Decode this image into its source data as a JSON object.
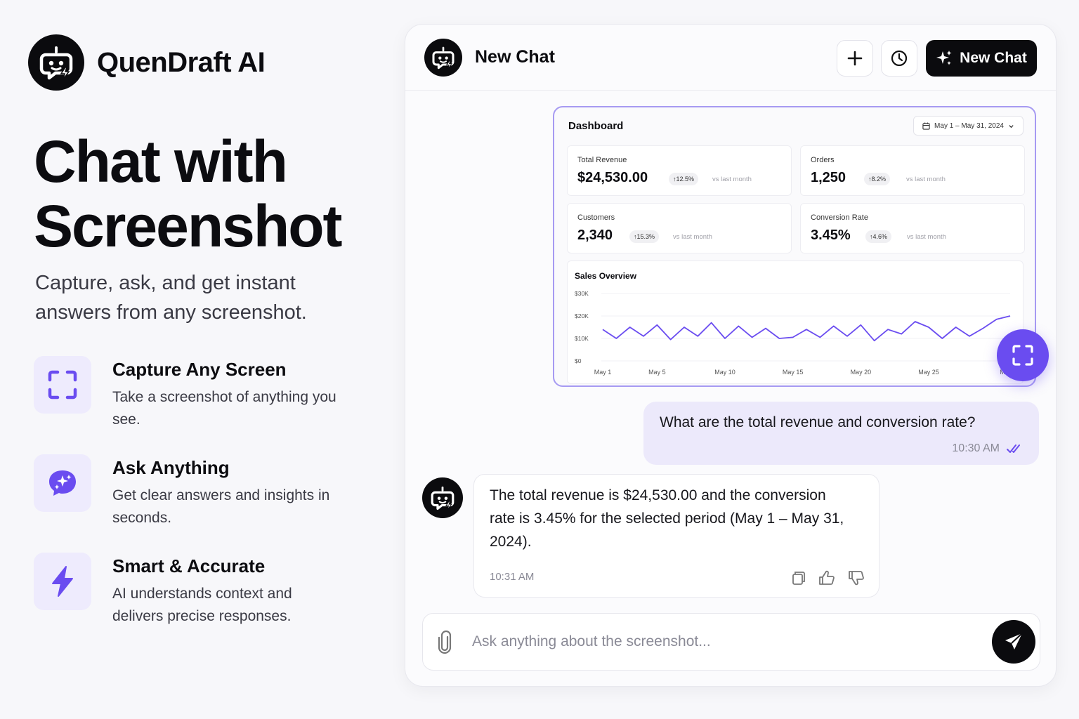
{
  "brand": {
    "name": "QuenDraft AI",
    "logo_icon": "robot-chat-icon"
  },
  "hero": {
    "title_line1": "Chat with",
    "title_line2": "Screenshot",
    "subtitle": "Capture, ask, and get instant answers from any screenshot."
  },
  "features": [
    {
      "icon": "capture-frame-icon",
      "title": "Capture Any Screen",
      "desc": "Take a screenshot of anything you see."
    },
    {
      "icon": "sparkle-chat-icon",
      "title": "Ask Anything",
      "desc": "Get clear answers and insights in seconds."
    },
    {
      "icon": "lightning-icon",
      "title": "Smart & Accurate",
      "desc": "AI understands context and delivers precise responses."
    }
  ],
  "chat": {
    "header_title": "New Chat",
    "new_chat_label": "New Chat",
    "accent": "#6a4cf0",
    "screenshot": {
      "title": "Dashboard",
      "date_range": "May 1 – May 31, 2024",
      "metrics": [
        {
          "label": "Total Revenue",
          "value": "$24,530.00",
          "change": "12.5%",
          "vs": "vs last month"
        },
        {
          "label": "Orders",
          "value": "1,250",
          "change": "8.2%",
          "vs": "vs last month"
        },
        {
          "label": "Customers",
          "value": "2,340",
          "change": "15.3%",
          "vs": "vs last month"
        },
        {
          "label": "Conversion Rate",
          "value": "3.45%",
          "change": "4.6%",
          "vs": "vs last month"
        }
      ]
    },
    "user_message": {
      "text": "What are the total revenue and conversion rate?",
      "time": "10:30 AM"
    },
    "bot_message": {
      "text": "The total revenue is $24,530.00 and the conversion rate is 3.45% for the selected period (May 1 – May 31, 2024).",
      "time": "10:31 AM"
    },
    "composer": {
      "placeholder": "Ask anything about the screenshot..."
    }
  },
  "chart_data": {
    "type": "line",
    "title": "Sales Overview",
    "xlabel": "",
    "ylabel": "",
    "y_ticks": [
      "$0",
      "$10K",
      "$20K",
      "$30K"
    ],
    "x_ticks": [
      "May 1",
      "May 5",
      "May 10",
      "May 15",
      "May 20",
      "May 25",
      "May 31"
    ],
    "ylim": [
      0,
      30000
    ],
    "grid": true,
    "color": "#6a4cf0",
    "x": [
      1,
      2,
      3,
      4,
      5,
      6,
      7,
      8,
      9,
      10,
      11,
      12,
      13,
      14,
      15,
      16,
      17,
      18,
      19,
      20,
      21,
      22,
      23,
      24,
      25,
      26,
      27,
      28,
      29,
      30,
      31
    ],
    "values": [
      14000,
      10000,
      15000,
      11000,
      16000,
      9500,
      15000,
      11000,
      17000,
      10000,
      15500,
      10500,
      14500,
      10000,
      10500,
      14000,
      10500,
      15500,
      11000,
      16000,
      9000,
      14000,
      12000,
      17500,
      15000,
      10000,
      15000,
      11000,
      14500,
      18500,
      20000
    ]
  }
}
